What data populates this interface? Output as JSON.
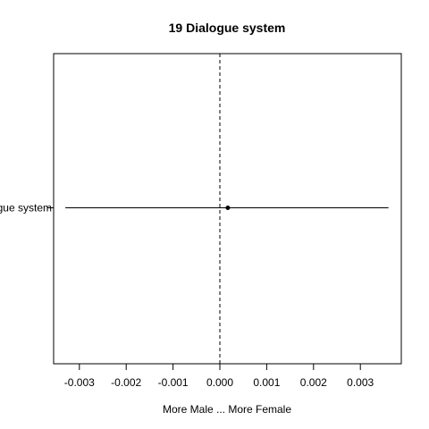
{
  "chart_data": {
    "type": "forest",
    "title": "19 Dialogue system",
    "xlabel": "More Male ... More Female",
    "ylabel": "",
    "xlim": [
      -0.003,
      0.003
    ],
    "xticks": [
      -0.003,
      -0.002,
      -0.001,
      0.0,
      0.001,
      0.002,
      0.003
    ],
    "xtick_labels": [
      "-0.003",
      "-0.002",
      "-0.001",
      "0.000",
      "0.001",
      "0.002",
      "0.003"
    ],
    "reference_line": {
      "x": 0,
      "style": "dashed"
    },
    "rows": [
      {
        "label": "Dialogue system",
        "estimate": 0.00017,
        "lower": -0.0033,
        "upper": 0.0036
      }
    ],
    "grid": false,
    "legend": "none"
  }
}
